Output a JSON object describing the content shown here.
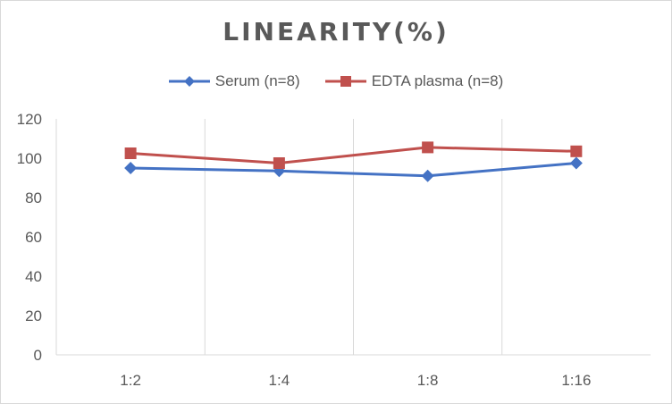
{
  "chart_data": {
    "type": "line",
    "title": "LINEARITY(%)",
    "categories": [
      "1:2",
      "1:4",
      "1:8",
      "1:16"
    ],
    "series": [
      {
        "name": "Serum (n=8)",
        "values": [
          95,
          93.5,
          91,
          97.5
        ],
        "color": "#4472c4",
        "marker": "diamond"
      },
      {
        "name": "EDTA plasma (n=8)",
        "values": [
          102.5,
          97.5,
          105.5,
          103.5
        ],
        "color": "#c0504d",
        "marker": "square"
      }
    ],
    "ylim": [
      0,
      120
    ],
    "yticks": [
      0,
      20,
      40,
      60,
      80,
      100,
      120
    ],
    "legend": "top",
    "grid": "vertical-category-separators"
  }
}
